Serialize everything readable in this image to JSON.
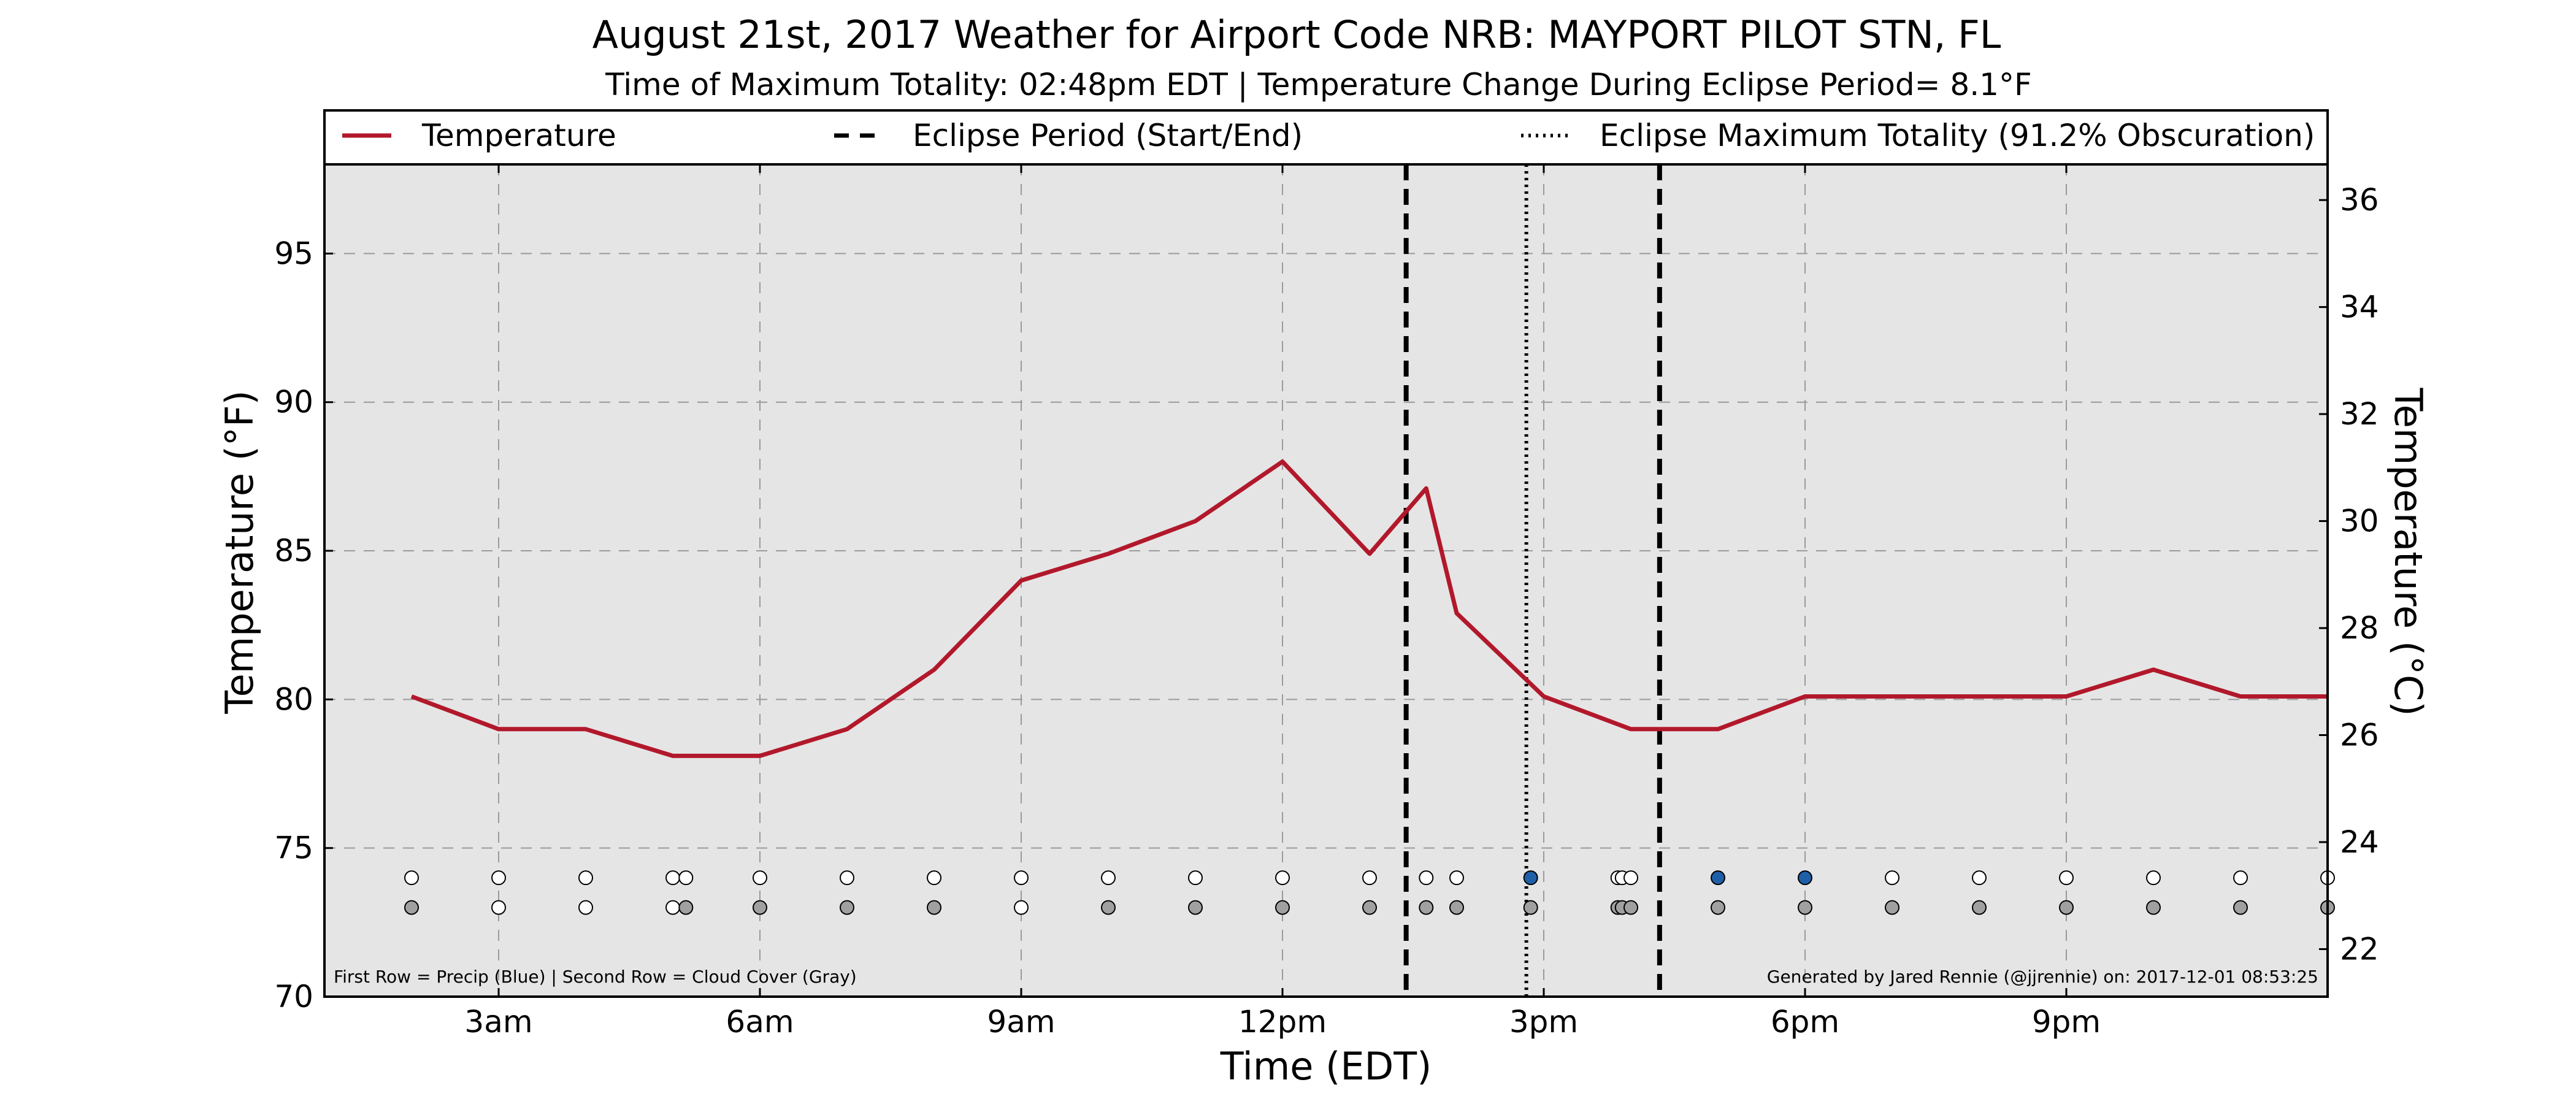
{
  "chart_data": {
    "type": "line",
    "title": "August 21st, 2017 Weather for Airport Code NRB: MAYPORT PILOT STN, FL",
    "subtitle": "Time of Maximum Totality: 02:48pm EDT | Temperature Change During Eclipse Period= 8.1°F",
    "xlabel": "Time (EDT)",
    "ylabel": "Temperature (°F)",
    "ylabel_right": "Temperature (°C)",
    "x_unit": "hours after midnight (EDT)",
    "xlim": [
      1,
      24
    ],
    "ylim": [
      70,
      98
    ],
    "ylim_right_celsius": [
      21.11,
      36.67
    ],
    "x_ticks": [
      {
        "x": 3,
        "label": "3am"
      },
      {
        "x": 6,
        "label": "6am"
      },
      {
        "x": 9,
        "label": "9am"
      },
      {
        "x": 12,
        "label": "12pm"
      },
      {
        "x": 15,
        "label": "3pm"
      },
      {
        "x": 18,
        "label": "6pm"
      },
      {
        "x": 21,
        "label": "9pm"
      }
    ],
    "y_ticks": [
      70,
      75,
      80,
      85,
      90,
      95
    ],
    "y_ticks_right": [
      22,
      24,
      26,
      28,
      30,
      32,
      34,
      36
    ],
    "grid": true,
    "legend_position": "top",
    "legend": {
      "temperature": "Temperature",
      "eclipse_period": "Eclipse Period (Start/End)",
      "max_totality": "Eclipse Maximum Totality (91.2% Obscuration)"
    },
    "series": [
      {
        "name": "Temperature",
        "color": "#b2182b",
        "points": [
          [
            2.0,
            80.1
          ],
          [
            3.0,
            79.0
          ],
          [
            4.0,
            79.0
          ],
          [
            5.0,
            78.1
          ],
          [
            6.0,
            78.1
          ],
          [
            7.0,
            79.0
          ],
          [
            8.0,
            81.0
          ],
          [
            9.0,
            84.0
          ],
          [
            10.0,
            84.9
          ],
          [
            11.0,
            86.0
          ],
          [
            12.0,
            88.0
          ],
          [
            13.0,
            84.9
          ],
          [
            13.65,
            87.1
          ],
          [
            14.0,
            82.9
          ],
          [
            15.0,
            80.1
          ],
          [
            16.0,
            79.0
          ],
          [
            17.0,
            79.0
          ],
          [
            18.0,
            80.1
          ],
          [
            19.0,
            80.1
          ],
          [
            20.0,
            80.1
          ],
          [
            21.0,
            80.1
          ],
          [
            22.0,
            81.0
          ],
          [
            23.0,
            80.1
          ],
          [
            24.0,
            80.1
          ]
        ]
      }
    ],
    "eclipse_start": 13.42,
    "eclipse_end": 16.33,
    "max_totality": 14.8,
    "precip_row": {
      "description_color_precip": "#1f5fa8",
      "points": [
        {
          "x": 2.0,
          "precip": false
        },
        {
          "x": 3.0,
          "precip": false
        },
        {
          "x": 4.0,
          "precip": false
        },
        {
          "x": 5.0,
          "precip": false
        },
        {
          "x": 5.15,
          "precip": false
        },
        {
          "x": 6.0,
          "precip": false
        },
        {
          "x": 7.0,
          "precip": false
        },
        {
          "x": 8.0,
          "precip": false
        },
        {
          "x": 9.0,
          "precip": false
        },
        {
          "x": 10.0,
          "precip": false
        },
        {
          "x": 11.0,
          "precip": false
        },
        {
          "x": 12.0,
          "precip": false
        },
        {
          "x": 13.0,
          "precip": false
        },
        {
          "x": 13.65,
          "precip": false
        },
        {
          "x": 14.0,
          "precip": false
        },
        {
          "x": 14.85,
          "precip": true
        },
        {
          "x": 15.85,
          "precip": false
        },
        {
          "x": 15.9,
          "precip": false
        },
        {
          "x": 16.0,
          "precip": false
        },
        {
          "x": 17.0,
          "precip": true
        },
        {
          "x": 18.0,
          "precip": true
        },
        {
          "x": 19.0,
          "precip": false
        },
        {
          "x": 20.0,
          "precip": false
        },
        {
          "x": 21.0,
          "precip": false
        },
        {
          "x": 22.0,
          "precip": false
        },
        {
          "x": 23.0,
          "precip": false
        },
        {
          "x": 24.0,
          "precip": false
        }
      ]
    },
    "cloud_row": {
      "description_color_cloud": "#a0a0a0",
      "points": [
        {
          "x": 2.0,
          "cloud": true
        },
        {
          "x": 3.0,
          "cloud": false
        },
        {
          "x": 4.0,
          "cloud": false
        },
        {
          "x": 5.0,
          "cloud": false
        },
        {
          "x": 5.15,
          "cloud": true
        },
        {
          "x": 6.0,
          "cloud": true
        },
        {
          "x": 7.0,
          "cloud": true
        },
        {
          "x": 8.0,
          "cloud": true
        },
        {
          "x": 9.0,
          "cloud": false
        },
        {
          "x": 10.0,
          "cloud": true
        },
        {
          "x": 11.0,
          "cloud": true
        },
        {
          "x": 12.0,
          "cloud": true
        },
        {
          "x": 13.0,
          "cloud": true
        },
        {
          "x": 13.65,
          "cloud": true
        },
        {
          "x": 14.0,
          "cloud": true
        },
        {
          "x": 14.85,
          "cloud": true
        },
        {
          "x": 15.85,
          "cloud": true
        },
        {
          "x": 15.9,
          "cloud": true
        },
        {
          "x": 16.0,
          "cloud": true
        },
        {
          "x": 17.0,
          "cloud": true
        },
        {
          "x": 18.0,
          "cloud": true
        },
        {
          "x": 19.0,
          "cloud": true
        },
        {
          "x": 20.0,
          "cloud": true
        },
        {
          "x": 21.0,
          "cloud": true
        },
        {
          "x": 22.0,
          "cloud": true
        },
        {
          "x": 23.0,
          "cloud": true
        },
        {
          "x": 24.0,
          "cloud": true
        }
      ]
    },
    "footnote_left": "First Row = Precip (Blue) | Second Row = Cloud Cover (Gray)",
    "footnote_right": "Generated by Jared Rennie (@jjrennie) on: 2017-12-01 08:53:25",
    "colors": {
      "plot_background": "#e5e5e5",
      "temperature_line": "#b2182b",
      "precip_marker": "#1f5fa8",
      "cloud_marker": "#a0a0a0"
    }
  }
}
